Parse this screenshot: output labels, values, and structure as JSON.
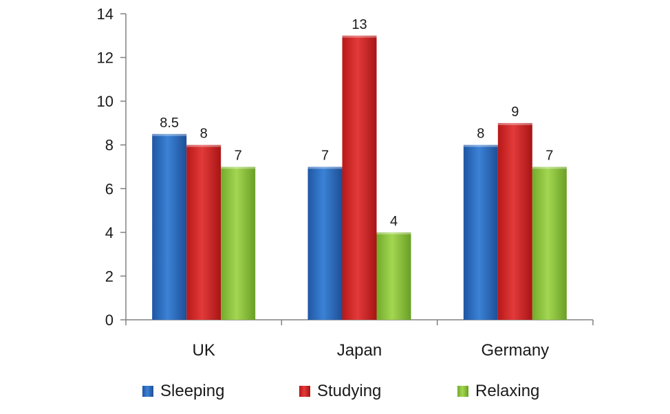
{
  "chart_data": {
    "type": "bar",
    "categories": [
      "UK",
      "Japan",
      "Germany"
    ],
    "series": [
      {
        "name": "Sleeping",
        "values": [
          8.5,
          7,
          8
        ],
        "color": "#2f6fbe"
      },
      {
        "name": "Studying",
        "values": [
          8,
          13,
          9
        ],
        "color": "#d42828"
      },
      {
        "name": "Relaxing",
        "values": [
          7,
          4,
          7
        ],
        "color": "#8cc63e"
      }
    ],
    "data_labels": [
      [
        "8.5",
        "8",
        "7"
      ],
      [
        "7",
        "13",
        "4"
      ],
      [
        "8",
        "9",
        "7"
      ]
    ],
    "yticks": [
      "0",
      "2",
      "4",
      "6",
      "8",
      "10",
      "12",
      "14"
    ],
    "ylim": [
      0,
      14
    ],
    "grid": false,
    "legend_position": "bottom"
  }
}
